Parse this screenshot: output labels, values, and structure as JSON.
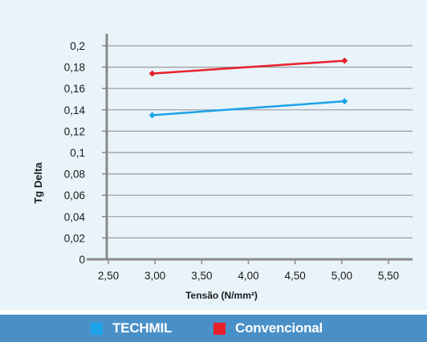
{
  "chart_data": {
    "type": "line",
    "title": "",
    "xlabel": "Tensão (N/mm²)",
    "ylabel": "Tg Delta",
    "xlim": [
      2.5,
      5.5
    ],
    "ylim": [
      0,
      0.2
    ],
    "x_ticks": [
      "2,50",
      "3,00",
      "3,50",
      "4,00",
      "4,50",
      "5,00",
      "5,50"
    ],
    "y_ticks": [
      "0",
      "0,02",
      "0,04",
      "0,06",
      "0,08",
      "0,1",
      "0,12",
      "0,14",
      "0,16",
      "0,18",
      "0,2"
    ],
    "grid": "horizontal",
    "legend_position": "bottom",
    "series": [
      {
        "name": "TECHMIL",
        "color": "#1aa3e8",
        "x": [
          2.97,
          5.03
        ],
        "y": [
          0.135,
          0.148
        ]
      },
      {
        "name": "Convencional",
        "color": "#e8202a",
        "x": [
          2.97,
          5.03
        ],
        "y": [
          0.174,
          0.186
        ]
      }
    ]
  }
}
